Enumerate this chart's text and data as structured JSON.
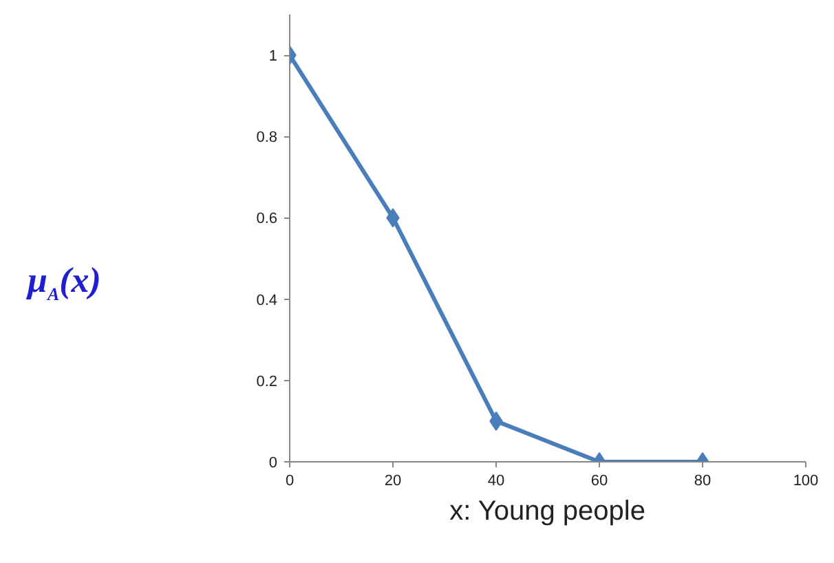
{
  "chart_data": {
    "type": "line",
    "xlabel": "x: Young people",
    "ylabel": "μ$_{A}$(x)",
    "x": [
      0,
      20,
      40,
      60,
      80
    ],
    "series": [
      {
        "color": "#4a7ebb",
        "values": [
          1,
          0.6,
          0.1,
          0,
          0
        ]
      }
    ],
    "xlim": [
      0,
      100
    ],
    "xticks": [
      0,
      20,
      40,
      60,
      80,
      100
    ],
    "ylim": [
      0,
      1.1
    ],
    "yticks": [
      0,
      0.2,
      0.4,
      0.6,
      0.8,
      1
    ],
    "marker": "diamond",
    "line_style": "solid",
    "grid": false
  }
}
